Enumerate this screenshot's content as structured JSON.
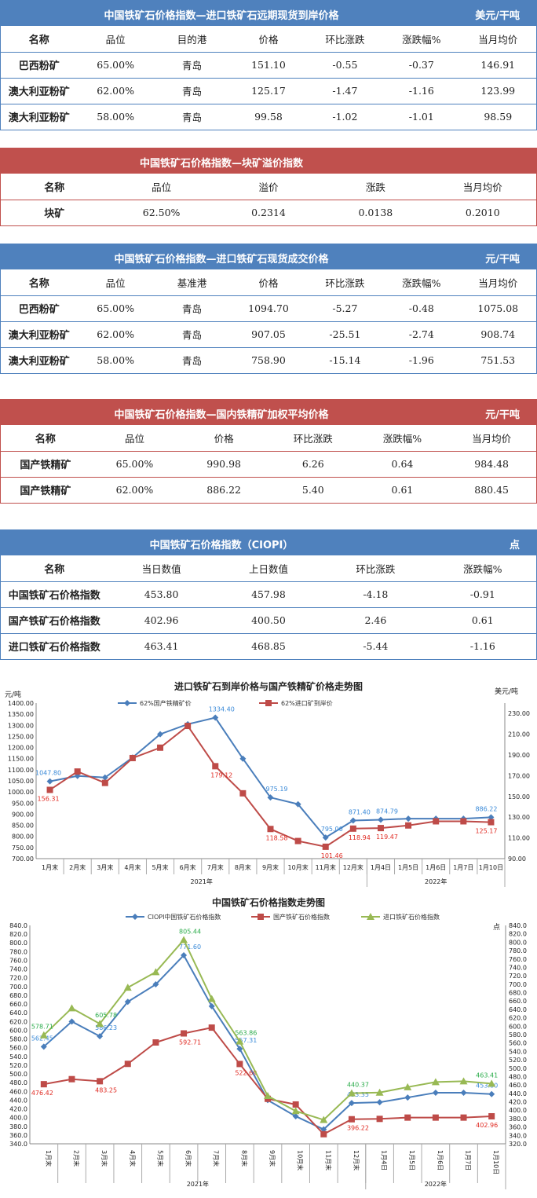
{
  "tables": [
    {
      "title": "中国铁矿石价格指数—进口铁矿石远期现货到岸价格",
      "unit": "美元/干吨",
      "color": "#4f81bd",
      "headers": [
        "名称",
        "品位",
        "目的港",
        "价格",
        "环比涨跌",
        "涨跌幅%",
        "当月均价"
      ],
      "rows": [
        [
          "巴西粉矿",
          "65.00%",
          "青岛",
          "151.10",
          "-0.55",
          "-0.37",
          "146.91"
        ],
        [
          "澳大利亚粉矿",
          "62.00%",
          "青岛",
          "125.17",
          "-1.47",
          "-1.16",
          "123.99"
        ],
        [
          "澳大利亚粉矿",
          "58.00%",
          "青岛",
          "99.58",
          "-1.02",
          "-1.01",
          "98.59"
        ]
      ]
    },
    {
      "title": "中国铁矿石价格指数—块矿溢价指数",
      "unit": "",
      "color": "#c0504d",
      "headers": [
        "名称",
        "品位",
        "溢价",
        "涨跌",
        "当月均价"
      ],
      "rows": [
        [
          "块矿",
          "62.50%",
          "0.2314",
          "0.0138",
          "0.2010"
        ]
      ]
    },
    {
      "title": "中国铁矿石价格指数—进口铁矿石现货成交价格",
      "unit": "元/干吨",
      "color": "#4f81bd",
      "headers": [
        "名称",
        "品位",
        "基准港",
        "价格",
        "环比涨跌",
        "涨跌幅%",
        "当月均价"
      ],
      "rows": [
        [
          "巴西粉矿",
          "65.00%",
          "青岛",
          "1094.70",
          "-5.27",
          "-0.48",
          "1075.08"
        ],
        [
          "澳大利亚粉矿",
          "62.00%",
          "青岛",
          "907.05",
          "-25.51",
          "-2.74",
          "908.74"
        ],
        [
          "澳大利亚粉矿",
          "58.00%",
          "青岛",
          "758.90",
          "-15.14",
          "-1.96",
          "751.53"
        ]
      ]
    },
    {
      "title": "中国铁矿石价格指数—国内铁精矿加权平均价格",
      "unit": "元/干吨",
      "color": "#c0504d",
      "headers": [
        "名称",
        "品位",
        "价格",
        "环比涨跌",
        "涨跌幅%",
        "当月均价"
      ],
      "rows": [
        [
          "国产铁精矿",
          "65.00%",
          "990.98",
          "6.26",
          "0.64",
          "984.48"
        ],
        [
          "国产铁精矿",
          "62.00%",
          "886.22",
          "5.40",
          "0.61",
          "880.45"
        ]
      ]
    },
    {
      "title": "中国铁矿石价格指数（CIOPI）",
      "unit": "点",
      "color": "#4f81bd",
      "headers": [
        "名称",
        "当日数值",
        "上日数值",
        "环比涨跌",
        "涨跌幅%"
      ],
      "rows": [
        [
          "中国铁矿石价格指数",
          "453.80",
          "457.98",
          "-4.18",
          "-0.91"
        ],
        [
          "国产铁矿石价格指数",
          "402.96",
          "400.50",
          "2.46",
          "0.61"
        ],
        [
          "进口铁矿石价格指数",
          "463.41",
          "468.85",
          "-5.44",
          "-1.16"
        ]
      ]
    }
  ],
  "chart_data": [
    {
      "type": "line",
      "title": "进口铁矿石到岸价格与国产铁精矿价格走势图",
      "ylabel": "元/吨",
      "y2label": "美元/吨",
      "ylim": [
        700,
        1400
      ],
      "ystep": 50,
      "y2lim": [
        90,
        240
      ],
      "y2ticks": [
        90,
        110,
        130,
        150,
        170,
        190,
        210,
        230
      ],
      "categories": [
        "1月末",
        "2月末",
        "3月末",
        "4月末",
        "5月末",
        "6月末",
        "7月末",
        "8月末",
        "9月末",
        "10月末",
        "11月末",
        "12月末",
        "1月4日",
        "1月5日",
        "1月6日",
        "1月7日",
        "1月10日"
      ],
      "groups": [
        {
          "label": "2021年",
          "count": 12
        },
        {
          "label": "2022年",
          "count": 5
        }
      ],
      "legend": "top",
      "series": [
        {
          "name": "62%国产铁精矿价",
          "axis": "left",
          "color": "#4a7ebb",
          "label_color": "#3a8ad8",
          "marker": "diamond",
          "values": [
            1047.8,
            1072,
            1065,
            1155,
            1260,
            1305,
            1334.4,
            1150,
            975.19,
            945,
            795.0,
            871.4,
            874.79,
            880,
            880,
            880,
            886.22
          ],
          "data_labels": [
            "1047.80",
            null,
            null,
            null,
            null,
            null,
            "1334.40",
            null,
            "975.19",
            null,
            "795.00",
            "871.40",
            "874.79",
            null,
            null,
            null,
            "886.22"
          ]
        },
        {
          "name": "62%进口矿到岸价",
          "axis": "right",
          "color": "#be4b48",
          "label_color": "#e02a22",
          "marker": "square",
          "values": [
            156.31,
            174,
            163,
            187,
            197,
            218,
            179.12,
            153,
            118.58,
            107,
            101.46,
            118.94,
            119.47,
            122,
            126,
            126,
            125.17
          ],
          "data_labels": [
            "156.31",
            null,
            null,
            null,
            null,
            null,
            "179.12",
            null,
            "118.58",
            null,
            "101.46",
            "118.94",
            "119.47",
            null,
            null,
            null,
            "125.17"
          ]
        }
      ]
    },
    {
      "type": "line",
      "title": "中国铁矿石价格指数走势图",
      "y2label": "点",
      "ylim": [
        340,
        840
      ],
      "ystep": 20,
      "y2lim": [
        320,
        840
      ],
      "y2step": 20,
      "categories": [
        "1月末",
        "2月末",
        "3月末",
        "4月末",
        "5月末",
        "6月末",
        "7月末",
        "8月末",
        "9月末",
        "10月末",
        "11月末",
        "12月末",
        "1月4日",
        "1月5日",
        "1月6日",
        "1月7日",
        "1月10日"
      ],
      "groups": [
        {
          "label": "2021年",
          "count": 12
        },
        {
          "label": "2022年",
          "count": 5
        }
      ],
      "legend": "top",
      "series": [
        {
          "name": "CIOPI中国铁矿石价格指数",
          "axis": "left",
          "color": "#4a7ebb",
          "label_color": "#3a8ad8",
          "marker": "diamond",
          "values": [
            562.45,
            620,
            586.23,
            665,
            705,
            771.6,
            655,
            557.31,
            440,
            403,
            373,
            433.35,
            435,
            446,
            457,
            457,
            453.8
          ],
          "data_labels": [
            "562.45",
            null,
            "586.23",
            null,
            null,
            "771.60",
            null,
            "557.31",
            null,
            null,
            null,
            "433.35",
            null,
            null,
            null,
            null,
            "453.80"
          ]
        },
        {
          "name": "国产铁矿石价格指数",
          "axis": "left",
          "color": "#be4b48",
          "label_color": "#e02a22",
          "marker": "square",
          "values": [
            476.42,
            488,
            483.25,
            523,
            572,
            592.71,
            606,
            522.69,
            443,
            430,
            362,
            396.22,
            397,
            400,
            400,
            400,
            402.96
          ],
          "data_labels": [
            "476.42",
            null,
            "483.25",
            null,
            null,
            "592.71",
            null,
            "522.69",
            null,
            null,
            null,
            "396.22",
            null,
            null,
            null,
            null,
            "402.96"
          ]
        },
        {
          "name": "进口铁矿石价格指数",
          "axis": "right",
          "color": "#98b954",
          "label_color": "#2aac4a",
          "marker": "triangle",
          "values": [
            578.71,
            643,
            605.78,
            692,
            729,
            805.44,
            665,
            563.86,
            434,
            398,
            377,
            440.37,
            442,
            455,
            467,
            469,
            463.41
          ],
          "data_labels": [
            "578.71",
            null,
            "605.78",
            null,
            null,
            "805.44",
            null,
            "563.86",
            null,
            null,
            null,
            "440.37",
            null,
            null,
            null,
            null,
            "463.41"
          ]
        }
      ]
    }
  ]
}
